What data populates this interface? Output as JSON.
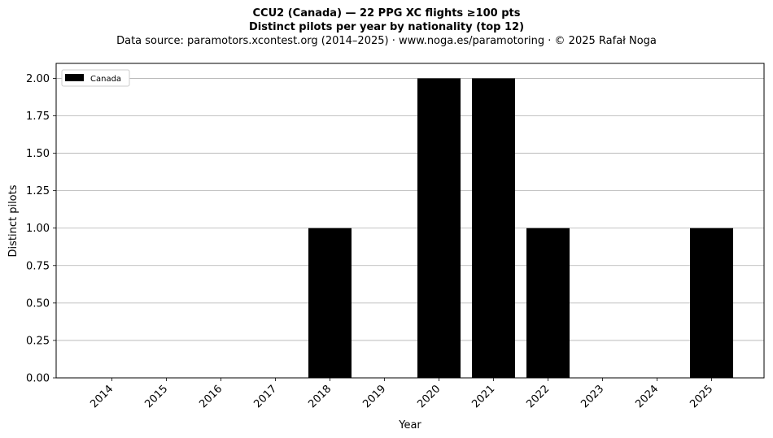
{
  "title": {
    "line1": "CCU2 (Canada)  —  22 PPG XC flights ≥100 pts",
    "line2": "Distinct pilots per year by nationality (top 12)",
    "line3": "Data source: paramotors.xcontest.org (2014–2025)  ·  www.noga.es/paramotoring  ·  © 2025 Rafał Noga"
  },
  "chart_data": {
    "type": "bar",
    "title": "CCU2 (Canada)  —  22 PPG XC flights ≥100 pts",
    "subtitle": "Distinct pilots per year by nationality (top 12)",
    "xlabel": "Year",
    "ylabel": "Distinct pilots",
    "categories": [
      "2014",
      "2015",
      "2016",
      "2017",
      "2018",
      "2019",
      "2020",
      "2021",
      "2022",
      "2023",
      "2024",
      "2025"
    ],
    "series": [
      {
        "name": "Canada",
        "color": "#000000",
        "values": [
          0,
          0,
          0,
          0,
          1,
          0,
          2,
          2,
          1,
          0,
          0,
          1
        ]
      }
    ],
    "ylim": [
      0,
      2.1
    ],
    "yticks": [
      "0.00",
      "0.25",
      "0.50",
      "0.75",
      "1.00",
      "1.25",
      "1.50",
      "1.75",
      "2.00"
    ],
    "grid": "horizontal",
    "legend_position": "top-left"
  }
}
